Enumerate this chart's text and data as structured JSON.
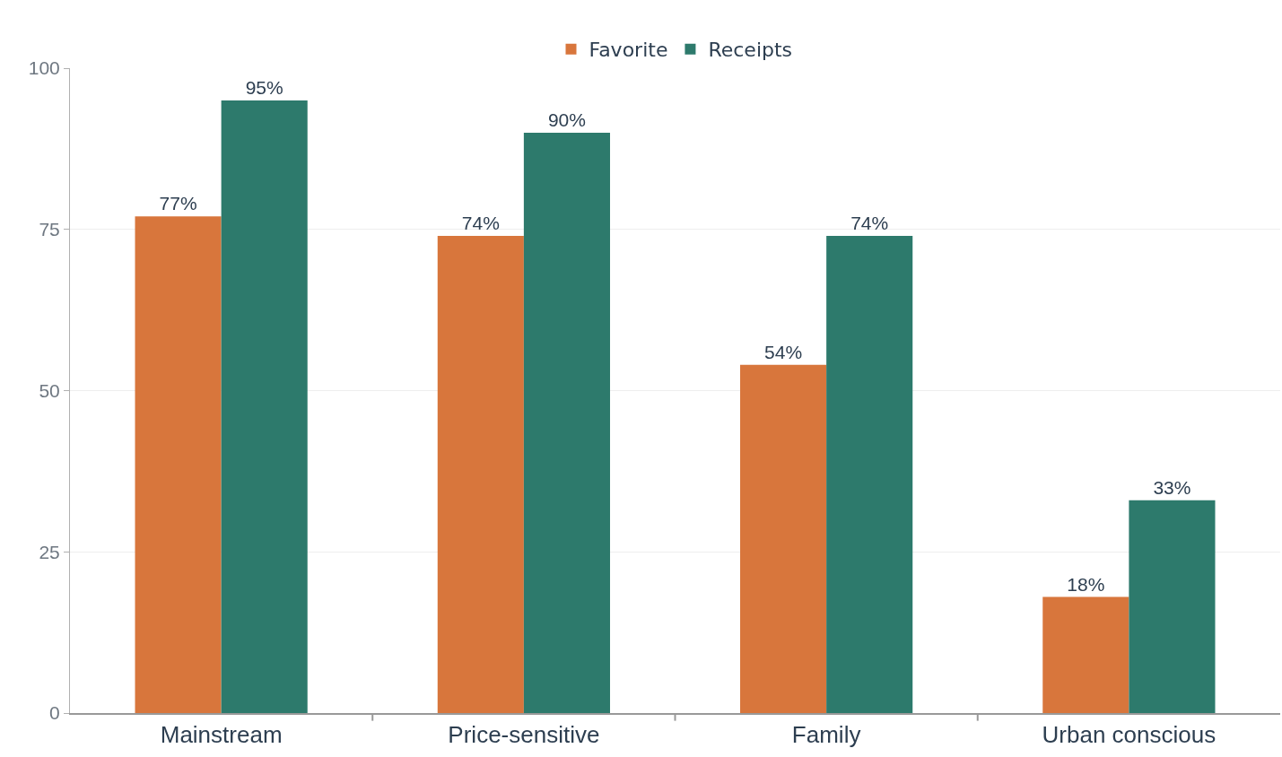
{
  "chart_data": {
    "type": "bar",
    "categories": [
      "Mainstream",
      "Price-sensitive",
      "Family",
      "Urban conscious"
    ],
    "series": [
      {
        "name": "Favorite",
        "color": "#d8763c",
        "values": [
          77,
          74,
          54,
          18
        ],
        "value_labels": [
          "77%",
          "74%",
          "54%",
          "18%"
        ]
      },
      {
        "name": "Receipts",
        "color": "#2d7a6c",
        "values": [
          95,
          90,
          74,
          33
        ],
        "value_labels": [
          "95%",
          "90%",
          "74%",
          "33%"
        ]
      }
    ],
    "ylim": [
      0,
      100
    ],
    "yticks": [
      0,
      25,
      50,
      75,
      100
    ],
    "grid": "y",
    "legend": "top"
  }
}
